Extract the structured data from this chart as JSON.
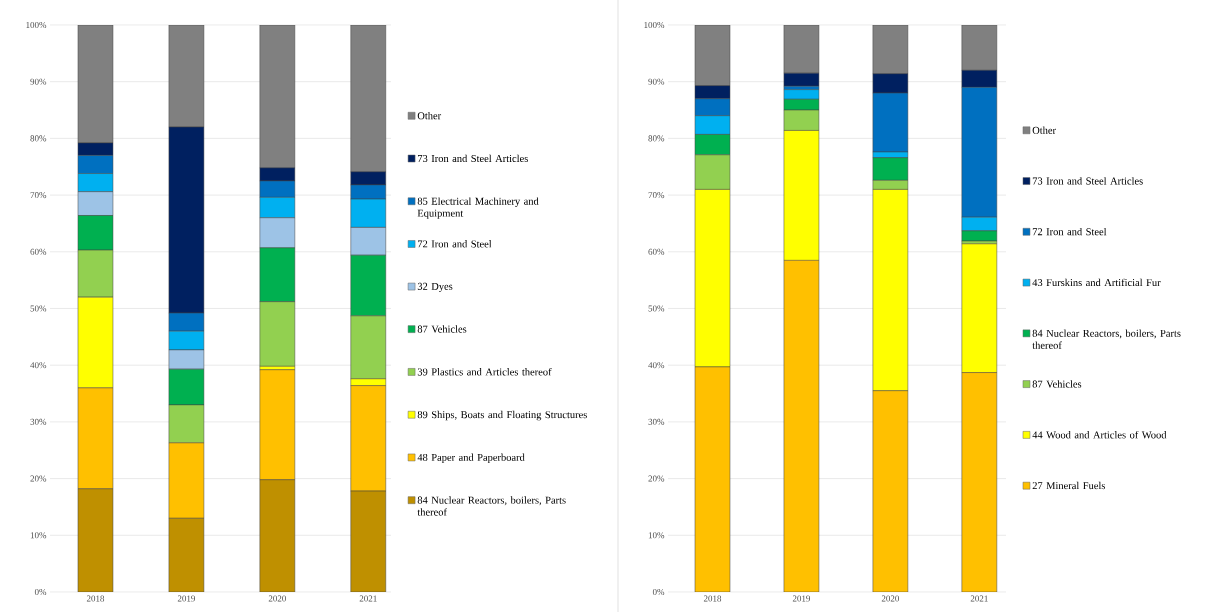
{
  "chart_data": [
    {
      "type": "bar",
      "stacked": true,
      "categories": [
        "2018",
        "2019",
        "2020",
        "2021"
      ],
      "ylim": [
        0,
        100
      ],
      "yticks": [
        {
          "value": 0,
          "label": "0%"
        },
        {
          "value": 10,
          "label": "10%"
        },
        {
          "value": 20,
          "label": "20%"
        },
        {
          "value": 30,
          "label": "30%"
        },
        {
          "value": 40,
          "label": "40%"
        },
        {
          "value": 50,
          "label": "50%"
        },
        {
          "value": 60,
          "label": "60%"
        },
        {
          "value": 70,
          "label": "70%"
        },
        {
          "value": 80,
          "label": "80%"
        },
        {
          "value": 90,
          "label": "90%"
        },
        {
          "value": 100,
          "label": "100%"
        }
      ],
      "grid": "y",
      "legend": "right",
      "series": [
        {
          "name": "84 Nuclear Reactors, boilers, Parts thereof",
          "color": "#bf9000",
          "values": [
            18.2,
            13,
            19.8,
            17.8
          ]
        },
        {
          "name": "48 Paper and Paperboard",
          "color": "#ffc000",
          "values": [
            17.8,
            13.3,
            19.4,
            18.6
          ]
        },
        {
          "name": "89 Ships, Boats and Floating Structures",
          "color": "#ffff00",
          "values": [
            16,
            0,
            0.6,
            1.2
          ]
        },
        {
          "name": "39 Plastics and Articles thereof",
          "color": "#92d050",
          "values": [
            8.3,
            6.7,
            11.4,
            11.1
          ]
        },
        {
          "name": "87 Vehicles",
          "color": "#00b050",
          "values": [
            6.1,
            6.3,
            9.5,
            10.7
          ]
        },
        {
          "name": "32 Dyes",
          "color": "#9dc3e6",
          "values": [
            4.2,
            3.4,
            5.3,
            4.9
          ]
        },
        {
          "name": "72 Iron and Steel",
          "color": "#00b0f0",
          "values": [
            3.2,
            3.3,
            3.6,
            5
          ]
        },
        {
          "name": "85 Electrical Machinery and Equipment",
          "color": "#0070c0",
          "values": [
            3.2,
            3.2,
            2.9,
            2.5
          ]
        },
        {
          "name": "73 Iron and Steel Articles",
          "color": "#002060",
          "values": [
            2.2,
            32.8,
            2.3,
            2.3
          ]
        },
        {
          "name": "Other",
          "color": "#808080",
          "values": [
            20.8,
            18,
            25.2,
            25.9
          ]
        }
      ]
    },
    {
      "type": "bar",
      "stacked": true,
      "categories": [
        "2018",
        "2019",
        "2020",
        "2021"
      ],
      "ylim": [
        0,
        100
      ],
      "yticks": [
        {
          "value": 0,
          "label": "0%"
        },
        {
          "value": 10,
          "label": "10%"
        },
        {
          "value": 20,
          "label": "20%"
        },
        {
          "value": 30,
          "label": "30%"
        },
        {
          "value": 40,
          "label": "40%"
        },
        {
          "value": 50,
          "label": "50%"
        },
        {
          "value": 60,
          "label": "60%"
        },
        {
          "value": 70,
          "label": "70%"
        },
        {
          "value": 80,
          "label": "80%"
        },
        {
          "value": 90,
          "label": "90%"
        },
        {
          "value": 100,
          "label": "100%"
        }
      ],
      "grid": "y",
      "legend": "right",
      "series": [
        {
          "name": "27 Mineral Fuels",
          "color": "#ffc000",
          "values": [
            39.7,
            58.5,
            35.5,
            38.7
          ]
        },
        {
          "name": "44 Wood and Articles of Wood",
          "color": "#ffff00",
          "values": [
            31.3,
            22.9,
            35.5,
            22.7
          ]
        },
        {
          "name": "87 Vehicles",
          "color": "#92d050",
          "values": [
            6.1,
            3.6,
            1.6,
            0.5
          ]
        },
        {
          "name": "84 Nuclear Reactors, boilers, Parts thereof",
          "color": "#00b050",
          "values": [
            3.6,
            1.9,
            4,
            1.8
          ]
        },
        {
          "name": "43 Furskins and Artificial Fur",
          "color": "#00b0f0",
          "values": [
            3.3,
            1.7,
            1,
            2.4
          ]
        },
        {
          "name": "72 Iron and Steel",
          "color": "#0070c0",
          "values": [
            3,
            0.6,
            10.4,
            22.9
          ]
        },
        {
          "name": "73 Iron and Steel Articles",
          "color": "#002060",
          "values": [
            2.3,
            2.3,
            3.4,
            3
          ]
        },
        {
          "name": "Other",
          "color": "#808080",
          "values": [
            10.7,
            8.5,
            8.6,
            8
          ]
        }
      ]
    }
  ]
}
